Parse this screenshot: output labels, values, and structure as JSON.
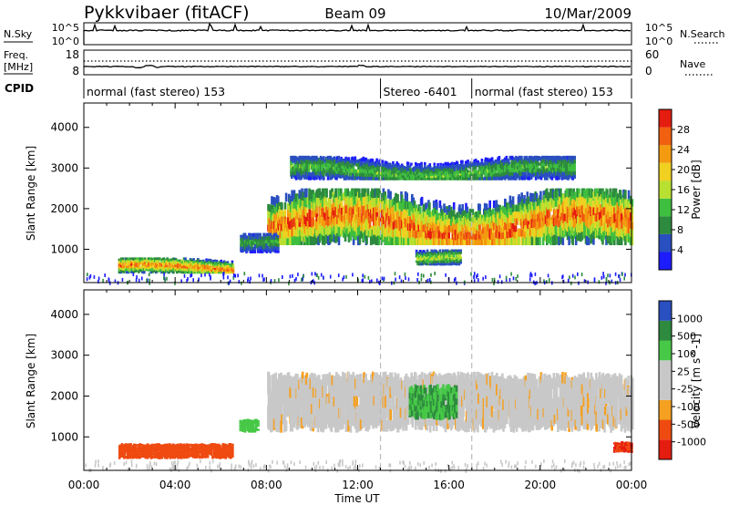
{
  "header": {
    "station": "Pykkvibaer (fitACF)",
    "beam": "Beam 09",
    "date": "10/Mar/2009"
  },
  "noise_panel": {
    "left_label": "N.Sky",
    "right_label": "N.Search",
    "left_ticks": [
      "10^5",
      "10^0"
    ],
    "right_ticks": [
      "10^5",
      "10^0"
    ]
  },
  "freq_panel": {
    "left_label_line1": "Freq.",
    "left_label_line2": "[MHz]",
    "right_label": "Nave",
    "left_ticks": [
      "18",
      "8"
    ],
    "right_ticks": [
      "60",
      "0"
    ]
  },
  "cpid": {
    "label": "CPID",
    "segments": [
      {
        "text": "normal (fast stereo) 153",
        "start_hour": 0,
        "end_hour": 13
      },
      {
        "text": "Stereo -6401",
        "start_hour": 13,
        "end_hour": 17
      },
      {
        "text": "normal (fast stereo) 153",
        "start_hour": 17,
        "end_hour": 24
      }
    ]
  },
  "time_axis": {
    "label": "Time UT",
    "ticks": [
      "00:00",
      "04:00",
      "08:00",
      "12:00",
      "16:00",
      "20:00",
      "00:00"
    ]
  },
  "colors": {
    "power_scale": [
      "#1c1cff",
      "#2a4fc0",
      "#2d8a3e",
      "#3fbf3f",
      "#b8e030",
      "#f0d020",
      "#f39a10",
      "#f06010",
      "#e51c10"
    ],
    "velocity_scale": [
      "#e51c10",
      "#ef4a10",
      "#f5a020",
      "#c8c8c8",
      "#c8c8c8",
      "#47c847",
      "#2d8a3e",
      "#2a4fc0"
    ]
  },
  "chart_data": [
    {
      "type": "heatmap",
      "title": "Power",
      "xlabel": "Time UT",
      "ylabel": "Slant Range [km]",
      "xlim": [
        0,
        24
      ],
      "ylim": [
        180,
        4600
      ],
      "yticks": [
        "1000",
        "2000",
        "3000",
        "4000"
      ],
      "colorbar": {
        "label": "Power [dB]",
        "ticks": [
          "4",
          "8",
          "12",
          "16",
          "20",
          "24",
          "28"
        ],
        "range": [
          0,
          31
        ]
      },
      "dashed_lines_hour": [
        13,
        17
      ],
      "regions": [
        {
          "start_hour": 1.5,
          "end_hour": 6.5,
          "min_km": 400,
          "max_km": 800,
          "peak_db": 28
        },
        {
          "start_hour": 8.0,
          "end_hour": 24.0,
          "min_km": 1100,
          "max_km": 2500,
          "peak_db": 30
        },
        {
          "start_hour": 9.0,
          "end_hour": 21.5,
          "min_km": 2700,
          "max_km": 3300,
          "peak_db": 14
        },
        {
          "start_hour": 6.8,
          "end_hour": 8.5,
          "min_km": 900,
          "max_km": 1400,
          "peak_db": 12
        },
        {
          "start_hour": 14.5,
          "end_hour": 16.5,
          "min_km": 600,
          "max_km": 1000,
          "peak_db": 18
        }
      ]
    },
    {
      "type": "heatmap",
      "title": "Velocity",
      "xlabel": "Time UT",
      "ylabel": "Slant Range [km]",
      "xlim": [
        0,
        24
      ],
      "ylim": [
        180,
        4600
      ],
      "yticks": [
        "1000",
        "2000",
        "3000",
        "4000"
      ],
      "colorbar": {
        "label": "Velocity [m s^-1]",
        "ticks": [
          "1000",
          "500",
          "100",
          "25",
          "-25",
          "-100",
          "-500",
          "-1000"
        ]
      },
      "dashed_lines_hour": [
        13,
        17
      ],
      "regions": [
        {
          "start_hour": 1.5,
          "end_hour": 6.5,
          "min_km": 450,
          "max_km": 850,
          "velocity": -300
        },
        {
          "start_hour": 8.0,
          "end_hour": 24.0,
          "min_km": 1100,
          "max_km": 2600,
          "velocity": 0
        },
        {
          "start_hour": 14.2,
          "end_hour": 16.3,
          "min_km": 1400,
          "max_km": 2300,
          "velocity": 500
        },
        {
          "start_hour": 6.8,
          "end_hour": 7.6,
          "min_km": 1100,
          "max_km": 1450,
          "velocity": 200
        },
        {
          "start_hour": 23.2,
          "end_hour": 24.0,
          "min_km": 600,
          "max_km": 900,
          "velocity": -500
        }
      ]
    }
  ]
}
